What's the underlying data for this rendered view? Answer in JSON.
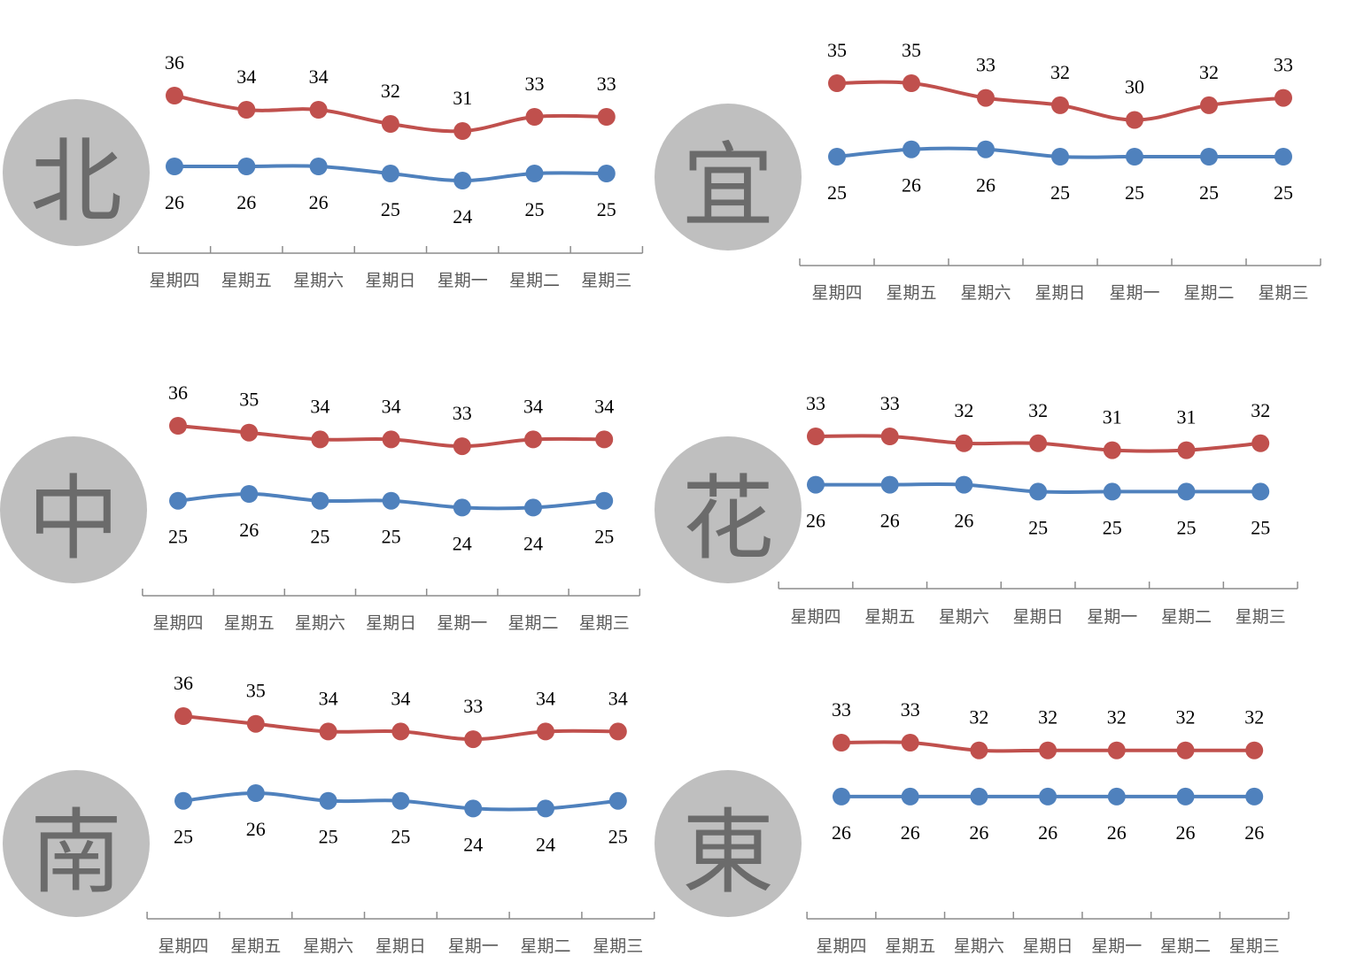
{
  "colors": {
    "high": "#c0504d",
    "low": "#4f81bd",
    "axis": "#8c8c8c",
    "badge": "#bfbfbf"
  },
  "chart_data": [
    {
      "type": "line",
      "region": "北",
      "categories": [
        "星期四",
        "星期五",
        "星期六",
        "星期日",
        "星期一",
        "星期二",
        "星期三"
      ],
      "series": [
        {
          "values": [
            36,
            34,
            34,
            32,
            31,
            33,
            33
          ]
        },
        {
          "values": [
            26,
            26,
            26,
            25,
            24,
            25,
            25
          ]
        }
      ]
    },
    {
      "type": "line",
      "region": "宜",
      "categories": [
        "星期四",
        "星期五",
        "星期六",
        "星期日",
        "星期一",
        "星期二",
        "星期三"
      ],
      "series": [
        {
          "values": [
            35,
            35,
            33,
            32,
            30,
            32,
            33
          ]
        },
        {
          "values": [
            25,
            26,
            26,
            25,
            25,
            25,
            25
          ]
        }
      ]
    },
    {
      "type": "line",
      "region": "中",
      "categories": [
        "星期四",
        "星期五",
        "星期六",
        "星期日",
        "星期一",
        "星期二",
        "星期三"
      ],
      "series": [
        {
          "values": [
            36,
            35,
            34,
            34,
            33,
            34,
            34
          ]
        },
        {
          "values": [
            25,
            26,
            25,
            25,
            24,
            24,
            25
          ]
        }
      ]
    },
    {
      "type": "line",
      "region": "花",
      "categories": [
        "星期四",
        "星期五",
        "星期六",
        "星期日",
        "星期一",
        "星期二",
        "星期三"
      ],
      "series": [
        {
          "values": [
            33,
            33,
            32,
            32,
            31,
            31,
            32
          ]
        },
        {
          "values": [
            26,
            26,
            26,
            25,
            25,
            25,
            25
          ]
        }
      ]
    },
    {
      "type": "line",
      "region": "南",
      "categories": [
        "星期四",
        "星期五",
        "星期六",
        "星期日",
        "星期一",
        "星期二",
        "星期三"
      ],
      "series": [
        {
          "values": [
            36,
            35,
            34,
            34,
            33,
            34,
            34
          ]
        },
        {
          "values": [
            25,
            26,
            25,
            25,
            24,
            24,
            25
          ]
        }
      ]
    },
    {
      "type": "line",
      "region": "東",
      "categories": [
        "星期四",
        "星期五",
        "星期六",
        "星期日",
        "星期一",
        "星期二",
        "星期三"
      ],
      "series": [
        {
          "values": [
            33,
            33,
            32,
            32,
            32,
            32,
            32
          ]
        },
        {
          "values": [
            26,
            26,
            26,
            26,
            26,
            26,
            26
          ]
        }
      ]
    }
  ]
}
